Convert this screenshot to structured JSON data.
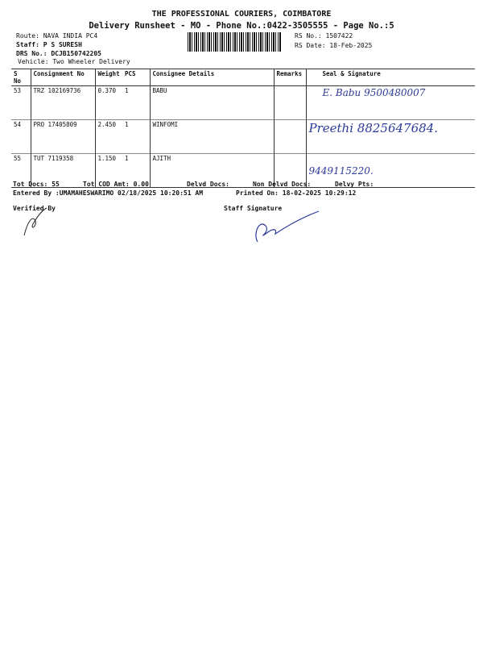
{
  "header": {
    "title": "THE PROFESSIONAL COURIERS, COIMBATORE",
    "subtitle": "Delivery Runsheet - MO - Phone No.:0422-3505555 - Page No.:5",
    "route": "Route: NAVA INDIA PC4",
    "staff": "Staff: P S SURESH",
    "drs": "DRS No.: DCJB150742205",
    "vehicle": "Vehicle: Two Wheeler Delivery",
    "rs_no": "RS No.: 1507422",
    "rs_date": "RS Date: 18-Feb-2025"
  },
  "table": {
    "headers": [
      "S No",
      "Consignment No",
      "Weight",
      "PCS",
      "Consignee Details",
      "Remarks",
      "Seal & Signature"
    ],
    "rows": [
      {
        "sno": "53",
        "consignment": "TRZ 102169736",
        "weight": "0.370",
        "pcs": "1",
        "consignee": "BABU",
        "remarks": "",
        "signature": "E. Babu 9500480007"
      },
      {
        "sno": "54",
        "consignment": "PRO 17405809",
        "weight": "2.450",
        "pcs": "1",
        "consignee": "WINFOMI",
        "remarks": "",
        "signature": "Preethi 8825647684."
      },
      {
        "sno": "55",
        "consignment": "TUT 7119358",
        "weight": "1.150",
        "pcs": "1",
        "consignee": "AJITH",
        "remarks": "",
        "signature": "9449115220."
      }
    ]
  },
  "footer": {
    "tot_docs": "Tot Docs:  55",
    "tot_cod": "Tot COD Amt:    0.00",
    "delvd": "Delvd Docs:",
    "non_delvd": "Non Delvd Docs:",
    "delvy_pts": "Delvy Pts:",
    "entered_by": "Entered By :UMAMAHESWARIMO 02/18/2025 10:20:51 AM",
    "printed_on": "Printed On: 18-02-2025 10:29:12",
    "verified_by": "Verified By",
    "staff_signature": "Staff Signature"
  }
}
